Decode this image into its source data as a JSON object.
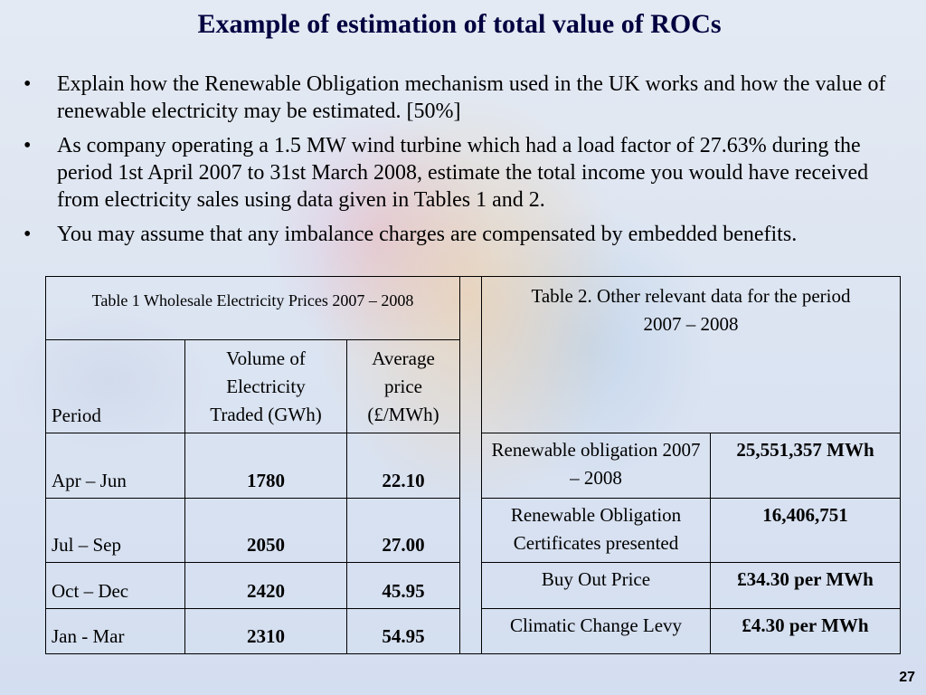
{
  "title": "Example of estimation of total value of ROCs",
  "bullets": [
    "Explain how the Renewable Obligation mechanism used in the UK works and how the value of renewable electricity may be estimated.   [50%]",
    "As company operating  a 1.5 MW wind turbine which had a load factor of  27.63% during the period 1st April 2007 to 31st March 2008,  estimate the total income you would have received from electricity sales using data given in Tables 1 and 2.",
    "You may assume that any imbalance charges are compensated by embedded benefits."
  ],
  "table1": {
    "caption": "Table 1   Wholesale Electricity Prices 2007 – 2008",
    "headers": [
      "Period",
      "Volume of Electricity Traded (GWh)",
      "Average price (£/MWh)"
    ],
    "rows": [
      [
        "Apr – Jun",
        "1780",
        "22.10"
      ],
      [
        "Jul – Sep",
        "2050",
        "27.00"
      ],
      [
        "Oct – Dec",
        "2420",
        "45.95"
      ],
      [
        "Jan - Mar",
        "2310",
        "54.95"
      ]
    ]
  },
  "table2": {
    "caption": "Table 2.   Other relevant data for the period 2007 – 2008",
    "rows": [
      [
        "Renewable obligation 2007 – 2008",
        "25,551,357 MWh"
      ],
      [
        "Renewable Obligation Certificates presented",
        "16,406,751"
      ],
      [
        "Buy Out Price",
        "£34.30 per MWh"
      ],
      [
        "Climatic Change Levy",
        "£4.30 per MWh"
      ]
    ]
  },
  "page_number": "27"
}
